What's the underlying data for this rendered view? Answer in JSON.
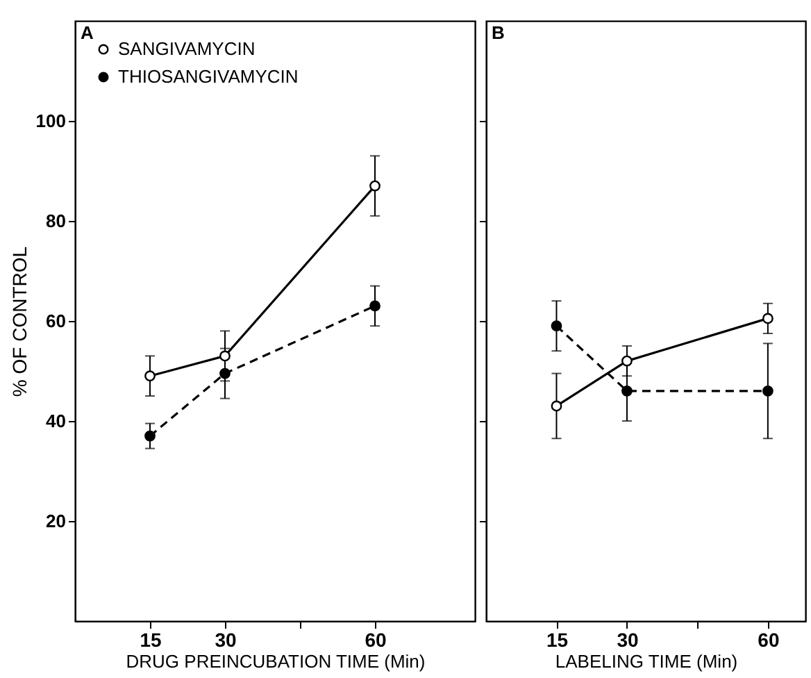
{
  "chart_data": [
    {
      "type": "line",
      "annotations": [
        "A"
      ],
      "xlabel": "DRUG PREINCUBATION TIME (Min)",
      "ylabel": "% OF CONTROL",
      "x": [
        15,
        30,
        60
      ],
      "xlim": [
        0,
        80
      ],
      "xticks": [
        15,
        30,
        {
          "value": 45,
          "label": null
        },
        60
      ],
      "ylim": [
        0,
        120
      ],
      "yticks": [
        20,
        40,
        60,
        80,
        100
      ],
      "grid": false,
      "legend": "top left",
      "marker": "circle",
      "series": [
        {
          "name": "SANGIVAMYCIN",
          "color": "#000000",
          "line_style": "solid",
          "values": [
            49,
            53,
            87
          ],
          "errors": [
            4,
            5,
            6
          ]
        },
        {
          "name": "THIOSANGIVAMYCIN",
          "color": "#000000",
          "line_style": "dashed",
          "values": [
            37,
            49.5,
            63
          ],
          "errors": [
            2.5,
            5,
            4
          ]
        }
      ]
    },
    {
      "type": "line",
      "annotations": [
        "B"
      ],
      "xlabel": "LABELING TIME (Min)",
      "x": [
        15,
        30,
        60
      ],
      "xlim": [
        0,
        68
      ],
      "xticks": [
        15,
        30,
        {
          "value": 45,
          "label": null
        },
        60
      ],
      "ylim": [
        0,
        120
      ],
      "yticks": [
        20,
        40,
        60,
        80,
        100
      ],
      "tick_labels": "x",
      "grid": false,
      "marker": "circle",
      "series": [
        {
          "color": "#000000",
          "line_style": "solid",
          "values": [
            43,
            52,
            60.5
          ],
          "errors": [
            6.5,
            3,
            3
          ]
        },
        {
          "color": "#000000",
          "line_style": "dashed",
          "values": [
            59,
            46,
            46
          ],
          "errors": [
            5,
            6,
            9.5
          ]
        }
      ]
    }
  ]
}
